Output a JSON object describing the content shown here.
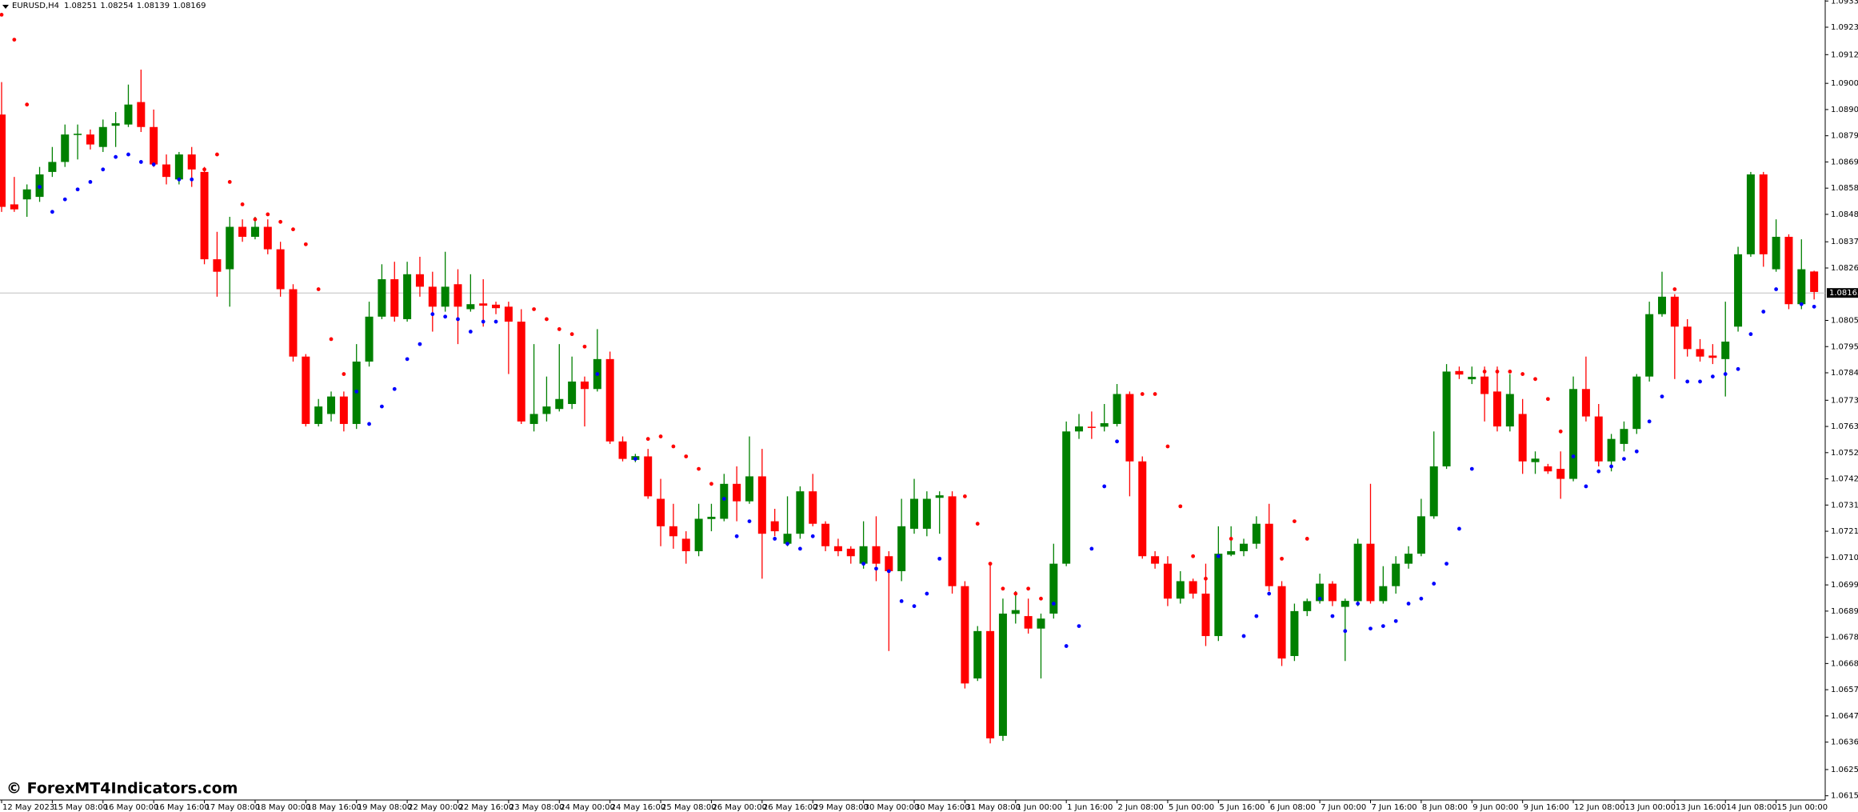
{
  "header": {
    "symbol": "EURUSD,H4"
  },
  "watermark": "© ForexMT4Indicators.com",
  "chart_data": {
    "type": "candlestick",
    "categories": [
      "12 May 2023",
      null,
      null,
      null,
      "15 May 08:00",
      null,
      null,
      null,
      "16 May 00:00",
      null,
      null,
      null,
      "16 May 16:00",
      null,
      null,
      null,
      "17 May 08:00",
      null,
      null,
      null,
      "18 May 00:00",
      null,
      null,
      null,
      "18 May 16:00",
      null,
      null,
      null,
      "19 May 08:00",
      null,
      null,
      null,
      "22 May 00:00",
      null,
      null,
      null,
      "22 May 16:00",
      null,
      null,
      null,
      "23 May 08:00",
      null,
      null,
      null,
      "24 May 00:00",
      null,
      null,
      null,
      "24 May 16:00",
      null,
      null,
      null,
      "25 May 08:00",
      null,
      null,
      null,
      "26 May 00:00",
      null,
      null,
      null,
      "26 May 16:00",
      null,
      null,
      null,
      "29 May 08:00",
      null,
      null,
      null,
      "30 May 00:00",
      null,
      null,
      null,
      "30 May 16:00",
      null,
      null,
      null,
      "31 May 08:00",
      null,
      null,
      null,
      "1 Jun 00:00",
      null,
      null,
      null,
      "1 Jun 16:00",
      null,
      null,
      null,
      "2 Jun 08:00",
      null,
      null,
      null,
      "5 Jun 00:00",
      null,
      null,
      null,
      "5 Jun 16:00",
      null,
      null,
      null,
      "6 Jun 08:00",
      null,
      null,
      null,
      "7 Jun 00:00",
      null,
      null,
      null,
      "7 Jun 16:00",
      null,
      null,
      null,
      "8 Jun 08:00",
      null,
      null,
      null,
      "9 Jun 00:00",
      null,
      null,
      null,
      "9 Jun 16:00",
      null,
      null,
      null,
      "12 Jun 08:00",
      null,
      null,
      null,
      "13 Jun 00:00",
      null,
      null,
      null,
      "13 Jun 16:00",
      null,
      null,
      null,
      "14 Jun 08:00",
      null,
      null,
      null,
      "15 Jun 00:00",
      null,
      null,
      null
    ],
    "open": [
      1.0888,
      1.0852,
      1.0854,
      1.0855,
      1.0865,
      1.0869,
      1.08798,
      1.088,
      1.0875,
      1.08835,
      1.0884,
      1.0893,
      1.0883,
      1.0868,
      1.0862,
      1.0872,
      1.0865,
      1.083,
      1.0826,
      1.0843,
      1.0839,
      1.0843,
      1.0834,
      1.0818,
      1.0791,
      1.0764,
      1.0768,
      1.0775,
      1.0764,
      1.0789,
      1.0807,
      1.0822,
      1.0806,
      1.0824,
      1.0819,
      1.0811,
      1.082,
      1.081,
      1.08123,
      1.08118,
      1.0811,
      1.0805,
      1.0764,
      1.0768,
      1.077,
      1.0772,
      1.0781,
      1.0778,
      1.079,
      1.0757,
      1.07496,
      1.0751,
      1.0734,
      1.0723,
      1.0718,
      1.0713,
      1.07259,
      1.0726,
      1.074,
      1.0733,
      1.0743,
      1.0725,
      1.0716,
      1.072,
      1.0737,
      1.0724,
      1.0715,
      1.0714,
      1.0708,
      1.0715,
      1.0711,
      1.0705,
      1.0722,
      1.0722,
      1.07344,
      1.0735,
      1.0699,
      1.0662,
      1.0681,
      1.0639,
      1.06879,
      1.0687,
      1.0682,
      1.0688,
      1.0708,
      1.0761,
      1.07629,
      1.07629,
      1.0764,
      1.0776,
      1.0749,
      1.0711,
      1.0708,
      1.0694,
      1.0701,
      1.0696,
      1.0679,
      1.07116,
      1.0713,
      1.0716,
      1.0724,
      1.0699,
      1.0671,
      1.0689,
      1.0693,
      1.07,
      1.06907,
      1.0693,
      1.0716,
      1.0693,
      1.0699,
      1.0708,
      1.0712,
      1.0727,
      1.0747,
      1.07852,
      1.07819,
      1.0783,
      1.0777,
      1.0763,
      1.0768,
      1.07487,
      1.0747,
      1.0746,
      1.0742,
      1.0778,
      1.0767,
      1.0749,
      1.0756,
      1.0762,
      1.0783,
      1.0808,
      1.0815,
      1.0803,
      1.0794,
      1.07914,
      1.079,
      1.0803,
      1.0832,
      1.0864,
      1.0826,
      1.0839,
      1.0812,
      1.08251
    ],
    "high": [
      1.0901,
      1.0863,
      1.086,
      1.0867,
      1.0875,
      1.0884,
      1.0884,
      1.0882,
      1.0886,
      1.0889,
      1.09,
      1.0906,
      1.089,
      1.0872,
      1.0873,
      1.0875,
      1.0867,
      1.0841,
      1.0847,
      1.0846,
      1.0847,
      1.0846,
      1.0837,
      1.082,
      1.0792,
      1.0774,
      1.0777,
      1.0777,
      1.0796,
      1.0813,
      1.0828,
      1.0829,
      1.0829,
      1.0831,
      1.0825,
      1.0833,
      1.0826,
      1.0824,
      1.0822,
      1.0813,
      1.0813,
      1.081,
      1.0796,
      1.0783,
      1.0796,
      1.0791,
      1.0783,
      1.0802,
      1.0793,
      1.0759,
      1.0752,
      1.0754,
      1.0742,
      1.0732,
      1.0721,
      1.0732,
      1.0732,
      1.0744,
      1.0747,
      1.0759,
      1.0754,
      1.073,
      1.0735,
      1.0739,
      1.0744,
      1.0725,
      1.0718,
      1.0715,
      1.0725,
      1.0727,
      1.0713,
      1.0734,
      1.0742,
      1.0737,
      1.0737,
      1.0737,
      1.0701,
      1.0683,
      1.0708,
      1.0694,
      1.0697,
      1.0694,
      1.0688,
      1.0716,
      1.0765,
      1.0768,
      1.0769,
      1.0772,
      1.078,
      1.0777,
      1.0751,
      1.0713,
      1.0711,
      1.0705,
      1.0702,
      1.0708,
      1.0723,
      1.0723,
      1.0718,
      1.0727,
      1.0732,
      1.0701,
      1.0692,
      1.0694,
      1.0704,
      1.0701,
      1.0694,
      1.0718,
      1.074,
      1.0707,
      1.0711,
      1.0715,
      1.0734,
      1.0761,
      1.0788,
      1.0787,
      1.0787,
      1.0787,
      1.0787,
      1.0784,
      1.0774,
      1.0753,
      1.0748,
      1.0753,
      1.0783,
      1.0791,
      1.0772,
      1.076,
      1.0765,
      1.0784,
      1.0813,
      1.0825,
      1.0816,
      1.0806,
      1.0798,
      1.0796,
      1.0813,
      1.0835,
      1.0865,
      1.0865,
      1.0846,
      1.084,
      1.0838,
      1.08254
    ],
    "low": [
      1.0849,
      1.0849,
      1.0847,
      1.0853,
      1.0863,
      1.0867,
      1.087,
      1.0874,
      1.0873,
      1.0875,
      1.0883,
      1.0881,
      1.0867,
      1.086,
      1.086,
      1.0859,
      1.0828,
      1.0815,
      1.0811,
      1.0837,
      1.0838,
      1.0832,
      1.0815,
      1.0789,
      1.0763,
      1.0763,
      1.0765,
      1.0761,
      1.0762,
      1.0787,
      1.0806,
      1.0805,
      1.0805,
      1.0815,
      1.0801,
      1.0809,
      1.0796,
      1.0809,
      1.0803,
      1.0808,
      1.0784,
      1.0764,
      1.0761,
      1.0765,
      1.0769,
      1.077,
      1.0763,
      1.0777,
      1.0756,
      1.0749,
      1.07487,
      1.0734,
      1.0715,
      1.0714,
      1.0708,
      1.0711,
      1.0721,
      1.0725,
      1.0725,
      1.0732,
      1.0702,
      1.0719,
      1.0715,
      1.0718,
      1.0723,
      1.0713,
      1.0711,
      1.0708,
      1.0706,
      1.0701,
      1.0673,
      1.0701,
      1.072,
      1.0719,
      1.072,
      1.0696,
      1.0658,
      1.0661,
      1.0636,
      1.0637,
      1.0684,
      1.068,
      1.0662,
      1.0686,
      1.0707,
      1.0758,
      1.0758,
      1.0761,
      1.0763,
      1.0735,
      1.071,
      1.0706,
      1.0691,
      1.0692,
      1.0694,
      1.0675,
      1.0677,
      1.0711,
      1.0711,
      1.0714,
      1.0697,
      1.0667,
      1.0669,
      1.0687,
      1.0692,
      1.0691,
      1.0669,
      1.0691,
      1.0692,
      1.0692,
      1.0696,
      1.0706,
      1.0711,
      1.0726,
      1.0746,
      1.0782,
      1.078,
      1.0765,
      1.0761,
      1.0761,
      1.0744,
      1.0744,
      1.0744,
      1.0734,
      1.0741,
      1.0765,
      1.0747,
      1.0745,
      1.0753,
      1.076,
      1.0781,
      1.0807,
      1.0782,
      1.0791,
      1.0789,
      1.0788,
      1.0775,
      1.0801,
      1.0831,
      1.0827,
      1.0825,
      1.081,
      1.081,
      1.08139
    ],
    "close": [
      1.0851,
      1.085,
      1.0858,
      1.0864,
      1.0869,
      1.088,
      1.08803,
      1.0876,
      1.0883,
      1.08845,
      1.0892,
      1.0883,
      1.0868,
      1.0863,
      1.0872,
      1.0866,
      1.083,
      1.0825,
      1.0843,
      1.0839,
      1.0843,
      1.0834,
      1.0818,
      1.0791,
      1.0764,
      1.0771,
      1.0775,
      1.0764,
      1.0789,
      1.0807,
      1.0822,
      1.0807,
      1.0824,
      1.0819,
      1.0811,
      1.0819,
      1.0811,
      1.0812,
      1.08114,
      1.08104,
      1.0805,
      1.0765,
      1.0768,
      1.0771,
      1.0774,
      1.0781,
      1.0778,
      1.079,
      1.0757,
      1.075,
      1.07511,
      1.0735,
      1.0723,
      1.0719,
      1.0713,
      1.0726,
      1.07268,
      1.074,
      1.0733,
      1.0743,
      1.072,
      1.0721,
      1.072,
      1.0737,
      1.0724,
      1.0715,
      1.0713,
      1.0711,
      1.0715,
      1.0708,
      1.0705,
      1.0723,
      1.0734,
      1.0734,
      1.07354,
      1.0699,
      1.066,
      1.0681,
      1.0638,
      1.0688,
      1.06894,
      1.0682,
      1.0686,
      1.0708,
      1.0761,
      1.0763,
      1.07624,
      1.07643,
      1.0776,
      1.0749,
      1.0711,
      1.0708,
      1.0694,
      1.0701,
      1.0696,
      1.0679,
      1.0712,
      1.0713,
      1.0716,
      1.0724,
      1.0699,
      1.067,
      1.0689,
      1.0693,
      1.07,
      1.0693,
      1.06931,
      1.0716,
      1.0693,
      1.0699,
      1.0708,
      1.0712,
      1.0727,
      1.0747,
      1.0785,
      1.07838,
      1.07829,
      1.0776,
      1.0763,
      1.0776,
      1.0749,
      1.07501,
      1.0745,
      1.0742,
      1.0778,
      1.0767,
      1.0749,
      1.0758,
      1.0762,
      1.0783,
      1.0808,
      1.0815,
      1.0803,
      1.0794,
      1.0791,
      1.07905,
      1.0797,
      1.0832,
      1.0864,
      1.0832,
      1.0839,
      1.0812,
      1.0826,
      1.08169
    ],
    "colors": {
      "up": "#008000",
      "down": "#ff0000"
    },
    "sar": {
      "values": [
        1.0928,
        1.0918,
        1.0892,
        1.0859,
        1.0849,
        1.0854,
        1.0858,
        1.0861,
        1.0866,
        1.0871,
        1.0872,
        1.0869,
        1.0868,
        1.0864,
        1.0862,
        1.0862,
        1.0866,
        1.0872,
        1.0861,
        1.0852,
        1.0846,
        1.0848,
        1.0845,
        1.0842,
        1.0836,
        1.0818,
        1.0798,
        1.0784,
        1.0777,
        1.0764,
        1.0771,
        1.0778,
        1.079,
        1.0796,
        1.0808,
        1.0807,
        1.0806,
        1.0801,
        1.0805,
        1.0805,
        1.081,
        1.0799,
        1.081,
        1.0806,
        1.0802,
        1.08,
        1.0795,
        1.0784,
        1.0764,
        1.0756,
        1.075,
        1.0758,
        1.0759,
        1.0755,
        1.0751,
        1.0746,
        1.074,
        1.0734,
        1.0719,
        1.0725,
        1.0726,
        1.0718,
        1.0716,
        1.0714,
        1.0719,
        1.0717,
        1.0714,
        1.0712,
        1.0708,
        1.0706,
        1.0705,
        1.0693,
        1.0691,
        1.0696,
        1.071,
        1.0719,
        1.0735,
        1.0724,
        1.0708,
        1.0698,
        1.0696,
        1.0698,
        1.0694,
        1.0692,
        1.0675,
        1.0683,
        1.0714,
        1.0739,
        1.0757,
        1.0759,
        1.0776,
        1.0776,
        1.0755,
        1.0731,
        1.0711,
        1.0702,
        1.0711,
        1.0718,
        1.0679,
        1.0687,
        1.0696,
        1.071,
        1.0725,
        1.0718,
        1.0694,
        1.0687,
        1.0681,
        1.0692,
        1.0682,
        1.0683,
        1.0685,
        1.0692,
        1.0694,
        1.07,
        1.0708,
        1.0722,
        1.0746,
        1.0785,
        1.0785,
        1.0785,
        1.0784,
        1.0782,
        1.0774,
        1.0761,
        1.0751,
        1.0739,
        1.0745,
        1.0747,
        1.075,
        1.0753,
        1.0765,
        1.0775,
        1.0818,
        1.0781,
        1.0781,
        1.0783,
        1.0784,
        1.0786,
        1.08,
        1.0809,
        1.0818,
        1.0818,
        1.0812,
        1.0811
      ],
      "colors": {
        "above": "#ff0000",
        "below": "#0000ff"
      }
    },
    "current_price": {
      "value": 1.08165,
      "label": "1.08165"
    },
    "ylim": [
      1.06133,
      1.09339
    ],
    "yticks": [
      1.09335,
      {
        "value": 1.0923,
        "label": "1.09230"
      },
      {
        "value": 1.0912,
        "label": "1.09120"
      },
      1.09005,
      {
        "value": 1.089,
        "label": "1.08900"
      },
      1.08795,
      {
        "value": 1.0869,
        "label": "1.08690"
      },
      1.08585,
      {
        "value": 1.0848,
        "label": "1.08480"
      },
      {
        "value": 1.0837,
        "label": "1.08370"
      },
      1.08265,
      1.08055,
      {
        "value": 1.0795,
        "label": "1.07950"
      },
      1.07845,
      1.07735,
      {
        "value": 1.0763,
        "label": "1.07630"
      },
      1.07525,
      {
        "value": 1.0742,
        "label": "1.07420"
      },
      1.07315,
      {
        "value": 1.0721,
        "label": "1.07210"
      },
      1.07105,
      1.06995,
      {
        "value": 1.0689,
        "label": "1.06890"
      },
      1.06785,
      {
        "value": 1.0668,
        "label": "1.06680"
      },
      1.06575,
      {
        "value": 1.0647,
        "label": "1.06470"
      },
      1.06365,
      1.06255,
      {
        "value": 1.0615,
        "label": "1.06150"
      }
    ]
  }
}
